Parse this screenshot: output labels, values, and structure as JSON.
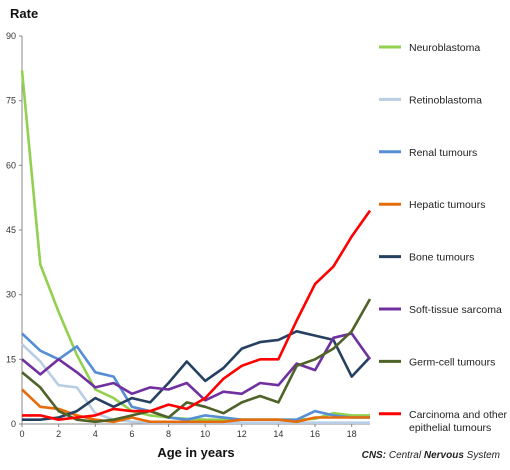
{
  "chart_data": {
    "type": "line",
    "ylabel": "Rate",
    "xlabel": "Age in years",
    "ylim": [
      0,
      90
    ],
    "xlim": [
      0,
      19
    ],
    "yticks": [
      0,
      15,
      30,
      45,
      60,
      75,
      90
    ],
    "xticks": [
      0,
      2,
      4,
      6,
      8,
      10,
      12,
      14,
      16,
      18
    ],
    "grid": false,
    "legend_placement": "right",
    "x": [
      0,
      1,
      2,
      3,
      4,
      5,
      6,
      7,
      8,
      9,
      10,
      11,
      12,
      13,
      14,
      15,
      16,
      17,
      18,
      19
    ],
    "series": [
      {
        "name": "Neuroblastoma",
        "color": "#92d050",
        "values": [
          82,
          37,
          26,
          16,
          8,
          6,
          3,
          2,
          1.5,
          1.2,
          1,
          1,
          1,
          1,
          1,
          1,
          1.2,
          2.5,
          2,
          2
        ]
      },
      {
        "name": "Retinoblastoma",
        "color": "#b9cde5",
        "values": [
          18.5,
          14.5,
          9,
          8.5,
          2.5,
          1,
          0.5,
          0.3,
          0.3,
          0.3,
          0.3,
          0.3,
          0.3,
          0.3,
          0.3,
          0.3,
          0.3,
          0.3,
          0.3,
          0.3
        ]
      },
      {
        "name": "Renal tumours",
        "color": "#558ed5",
        "values": [
          21,
          17,
          15,
          18,
          12,
          11,
          4,
          3,
          1.5,
          1,
          2,
          1.5,
          1,
          1,
          1,
          1,
          3,
          2,
          1.5,
          1.5
        ]
      },
      {
        "name": "Hepatic tumours",
        "color": "#e46c0a",
        "values": [
          8,
          4,
          3.5,
          2,
          1,
          0.5,
          1.5,
          0.5,
          0.5,
          0.5,
          0.5,
          0.5,
          1,
          1,
          1,
          0.5,
          1.5,
          1.5,
          1.5,
          1.5
        ]
      },
      {
        "name": "Bone tumours",
        "color": "#254061",
        "values": [
          1,
          1,
          1.5,
          3,
          6,
          4,
          6,
          5,
          9.5,
          14.5,
          10,
          13,
          17.5,
          19,
          19.5,
          21.5,
          20.5,
          19.5,
          11,
          15.5
        ]
      },
      {
        "name": "Soft-tissue sarcoma",
        "color": "#7030a0",
        "values": [
          15,
          11.5,
          15,
          12,
          8.5,
          9.5,
          7,
          8.5,
          8,
          9.5,
          5.5,
          7.5,
          7,
          9.5,
          9,
          14,
          12.5,
          20,
          21,
          15
        ]
      },
      {
        "name": "Germ-cell tumours",
        "color": "#4f6228",
        "values": [
          12,
          8.5,
          3,
          1,
          0.5,
          1,
          2,
          3,
          1.5,
          5,
          4,
          2.5,
          5,
          6.5,
          5,
          13.5,
          15,
          17.5,
          21.5,
          29
        ]
      },
      {
        "name": "Carcinoma and other epithelial tumours",
        "color": "#ff0000",
        "values": [
          2,
          2,
          1,
          1.5,
          2,
          3.5,
          3,
          3,
          4.5,
          3.5,
          6,
          10.5,
          13.5,
          15,
          15,
          24,
          32.5,
          36.5,
          43.5,
          49.5
        ]
      }
    ],
    "legend_lines": [
      [
        "Neuroblastoma"
      ],
      [
        "Retinoblastoma"
      ],
      [
        "Renal tumours"
      ],
      [
        "Hepatic tumours"
      ],
      [
        "Bone tumours"
      ],
      [
        "Soft-tissue sarcoma"
      ],
      [
        "Germ-cell tumours"
      ],
      [
        "Carcinoma and other",
        "epithelial tumours"
      ]
    ]
  },
  "footnote": {
    "prefix": "CNS:",
    "text_a": " Central ",
    "text_b": "Nervous",
    "text_c": " System"
  }
}
